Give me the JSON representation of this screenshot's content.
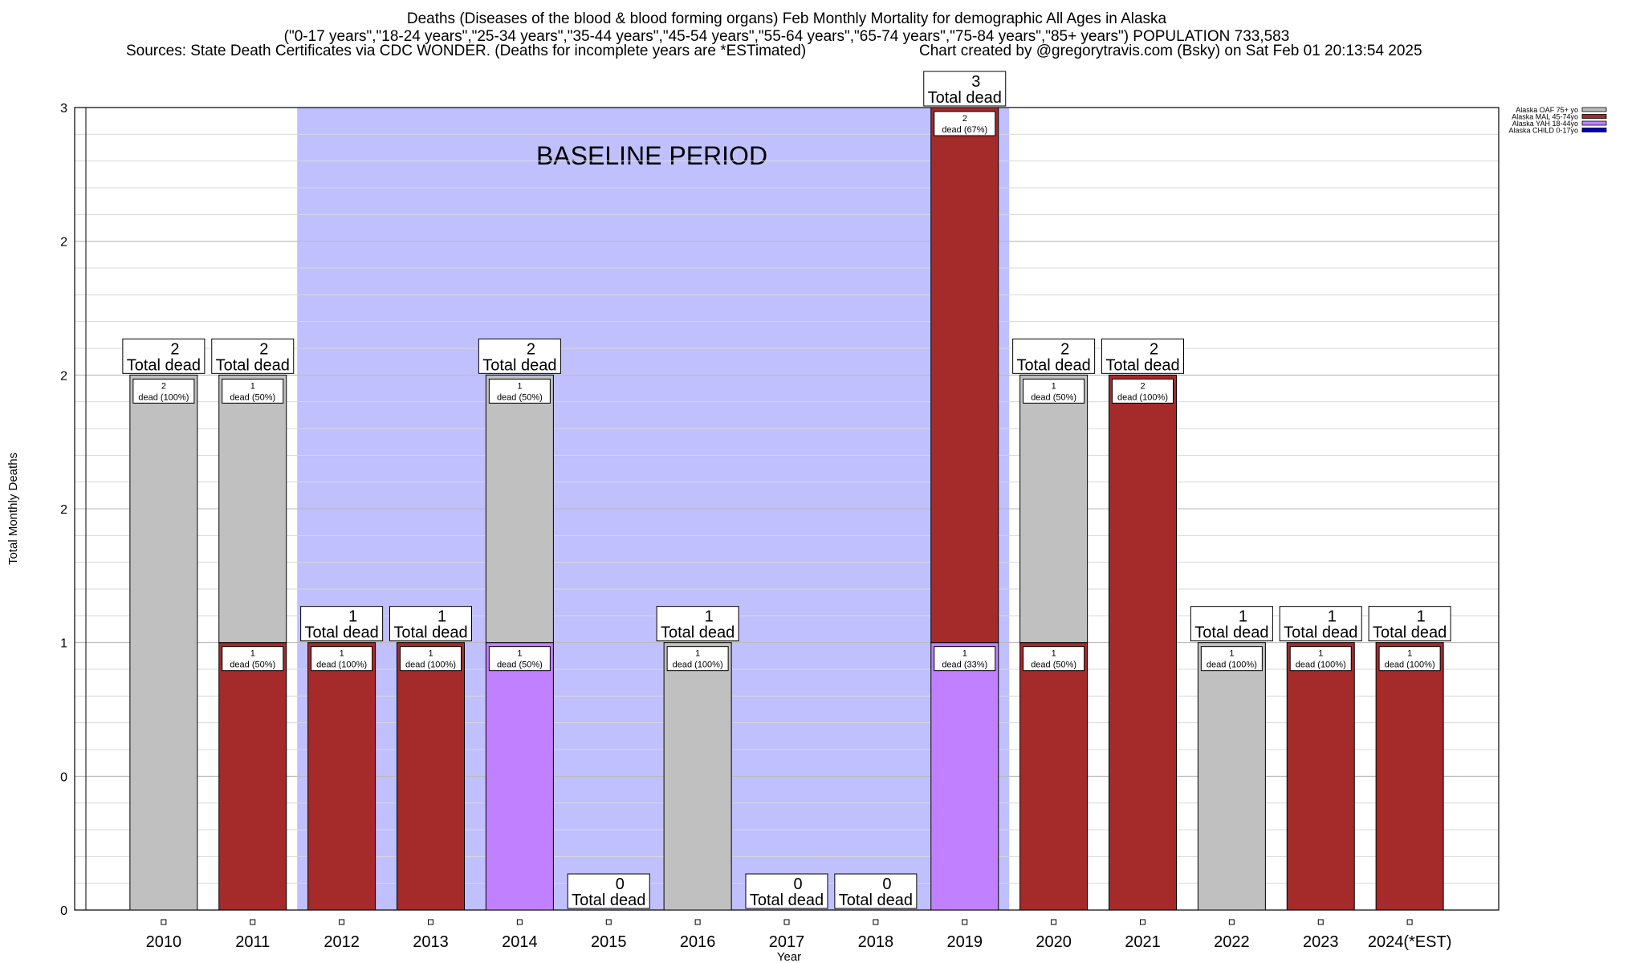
{
  "chart_data": {
    "type": "bar",
    "stacked": true,
    "title": "Deaths (Diseases of the blood & blood forming organs) Feb Monthly Mortality for demographic All Ages in Alaska",
    "subtitle": "(\"0-17 years\",\"18-24 years\",\"25-34 years\",\"35-44 years\",\"45-54 years\",\"55-64 years\",\"65-74 years\",\"75-84 years\",\"85+ years\") POPULATION 733,583",
    "source": "Sources: State Death Certificates via CDC WONDER. (Deaths for incomplete years are *ESTimated)",
    "credit": "Chart created by @gregorytravis.com (Bsky) on Sat Feb 01 20:13:54 2025",
    "xlabel": "Year",
    "ylabel": "Total Monthly Deaths",
    "ylim": [
      0,
      3
    ],
    "yticks": [
      0,
      0.5,
      1,
      1.5,
      2,
      2.5,
      3
    ],
    "ytick_labels": [
      "0",
      "0",
      "1",
      "2",
      "2",
      "2",
      "3"
    ],
    "grid": true,
    "legend_position": "top-right",
    "baseline_period": {
      "label": "BASELINE PERIOD",
      "from": "2012",
      "to": "2019"
    },
    "categories": [
      "2010",
      "2011",
      "2012",
      "2013",
      "2014",
      "2015",
      "2016",
      "2017",
      "2018",
      "2019",
      "2020",
      "2021",
      "2022",
      "2023",
      "2024(*EST)"
    ],
    "series": [
      {
        "name": "Alaska CHILD 0-17yo",
        "color": "#0000c0",
        "values": [
          0,
          0,
          0,
          0,
          0,
          0,
          0,
          0,
          0,
          0,
          0,
          0,
          0,
          0,
          0
        ]
      },
      {
        "name": "Alaska YAH 18-44yo",
        "color": "#c080ff",
        "values": [
          0,
          0,
          0,
          0,
          1,
          0,
          0,
          0,
          0,
          1,
          0,
          0,
          0,
          0,
          0
        ]
      },
      {
        "name": "Alaska MAL 45-74yo",
        "color": "#a52a2a",
        "values": [
          0,
          1,
          1,
          1,
          0,
          0,
          0,
          0,
          0,
          2,
          1,
          2,
          0,
          1,
          1
        ]
      },
      {
        "name": "Alaska OAF 75+ yo",
        "color": "#c0c0c0",
        "values": [
          2,
          1,
          0,
          0,
          1,
          0,
          1,
          0,
          0,
          0,
          1,
          0,
          1,
          0,
          0
        ]
      }
    ],
    "totals": [
      2,
      2,
      1,
      1,
      2,
      0,
      1,
      0,
      0,
      3,
      2,
      2,
      1,
      1,
      1
    ],
    "total_label": "Total dead",
    "segment_labels": [
      [
        {
          "n": "2",
          "text": "dead (100%)"
        }
      ],
      [
        {
          "n": "1",
          "text": "dead (50%)"
        },
        {
          "n": "1",
          "text": "dead (50%)"
        }
      ],
      [
        {
          "n": "1",
          "text": "dead (100%)"
        }
      ],
      [
        {
          "n": "1",
          "text": "dead (100%)"
        }
      ],
      [
        {
          "n": "1",
          "text": "dead (50%)"
        },
        {
          "n": "1",
          "text": "dead (50%)"
        }
      ],
      [],
      [
        {
          "n": "1",
          "text": "dead (100%)"
        }
      ],
      [],
      [],
      [
        {
          "n": "1",
          "text": "dead (33%)"
        },
        {
          "n": "2",
          "text": "dead (67%)"
        }
      ],
      [
        {
          "n": "1",
          "text": "dead (50%)"
        },
        {
          "n": "1",
          "text": "dead (50%)"
        }
      ],
      [
        {
          "n": "2",
          "text": "dead (100%)"
        }
      ],
      [
        {
          "n": "1",
          "text": "dead (100%)"
        }
      ],
      [
        {
          "n": "1",
          "text": "dead (100%)"
        }
      ],
      [
        {
          "n": "1",
          "text": "dead (100%)"
        }
      ]
    ],
    "legend": [
      {
        "label": "Alaska OAF 75+ yo",
        "color": "#c0c0c0"
      },
      {
        "label": "Alaska MAL 45-74yo",
        "color": "#a52a2a"
      },
      {
        "label": "Alaska YAH 18-44yo",
        "color": "#c080ff"
      },
      {
        "label": "Alaska CHILD 0-17yo",
        "color": "#0000c0"
      }
    ],
    "colors": {
      "baseline_shade": "#c0c0ff",
      "grid": "#d8d8d8"
    }
  }
}
